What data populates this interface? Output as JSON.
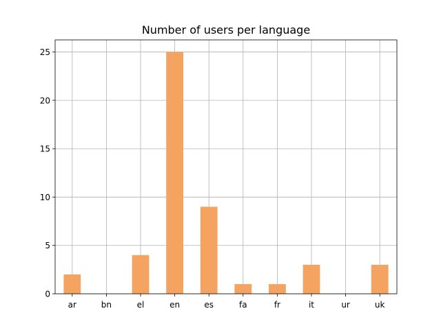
{
  "chart_data": {
    "type": "bar",
    "title": "Number of users per language",
    "xlabel": "",
    "ylabel": "",
    "categories": [
      "ar",
      "bn",
      "el",
      "en",
      "es",
      "fa",
      "fr",
      "it",
      "ur",
      "uk"
    ],
    "values": [
      2,
      0,
      4,
      25,
      9,
      1,
      1,
      3,
      0,
      3
    ],
    "ylim": [
      0,
      26.25
    ],
    "yticks": [
      0,
      5,
      10,
      15,
      20,
      25
    ],
    "grid": true,
    "legend": "none",
    "colors": {
      "bar": "#f4a460",
      "grid": "#b0b0b0",
      "axis": "#000000"
    }
  }
}
